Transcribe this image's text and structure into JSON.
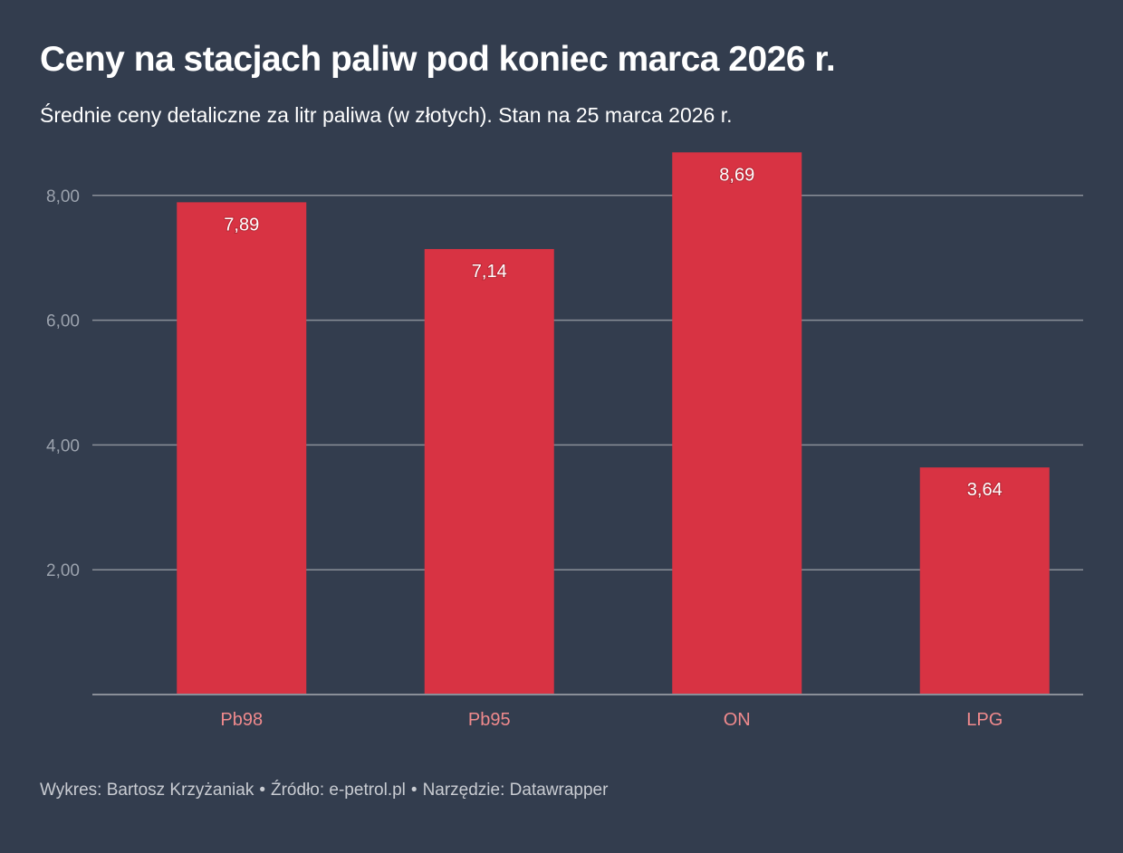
{
  "header": {
    "title": "Ceny na stacjach paliw pod koniec marca 2026 r.",
    "subtitle": "Średnie ceny detaliczne za litr paliwa (w złotych). Stan na 25 marca 2026 r."
  },
  "footer": {
    "author": "Wykres: Bartosz Krzyżaniak",
    "source": "Źródło: e-petrol.pl",
    "tool": "Narzędzie: Datawrapper",
    "separator": "•"
  },
  "colors": {
    "background": "#333d4e",
    "bar": "#d83343",
    "gridline": "#8a8f98",
    "x_label": "#f08a8d",
    "y_label": "#9ba2ad"
  },
  "chart_data": {
    "type": "bar",
    "title": "Ceny na stacjach paliw pod koniec marca 2026 r.",
    "subtitle": "Średnie ceny detaliczne za litr paliwa (w złotych). Stan na 25 marca 2026 r.",
    "categories": [
      "Pb98",
      "Pb95",
      "ON",
      "LPG"
    ],
    "values": [
      7.89,
      7.14,
      8.69,
      3.64
    ],
    "value_labels": [
      "7,89",
      "7,14",
      "8,69",
      "3,64"
    ],
    "xlabel": "",
    "ylabel": "",
    "ylim": [
      0,
      8.69
    ],
    "yticks": [
      2,
      4,
      6,
      8
    ],
    "ytick_labels": [
      "2,00",
      "4,00",
      "6,00",
      "8,00"
    ],
    "grid": true,
    "legend": "none"
  }
}
